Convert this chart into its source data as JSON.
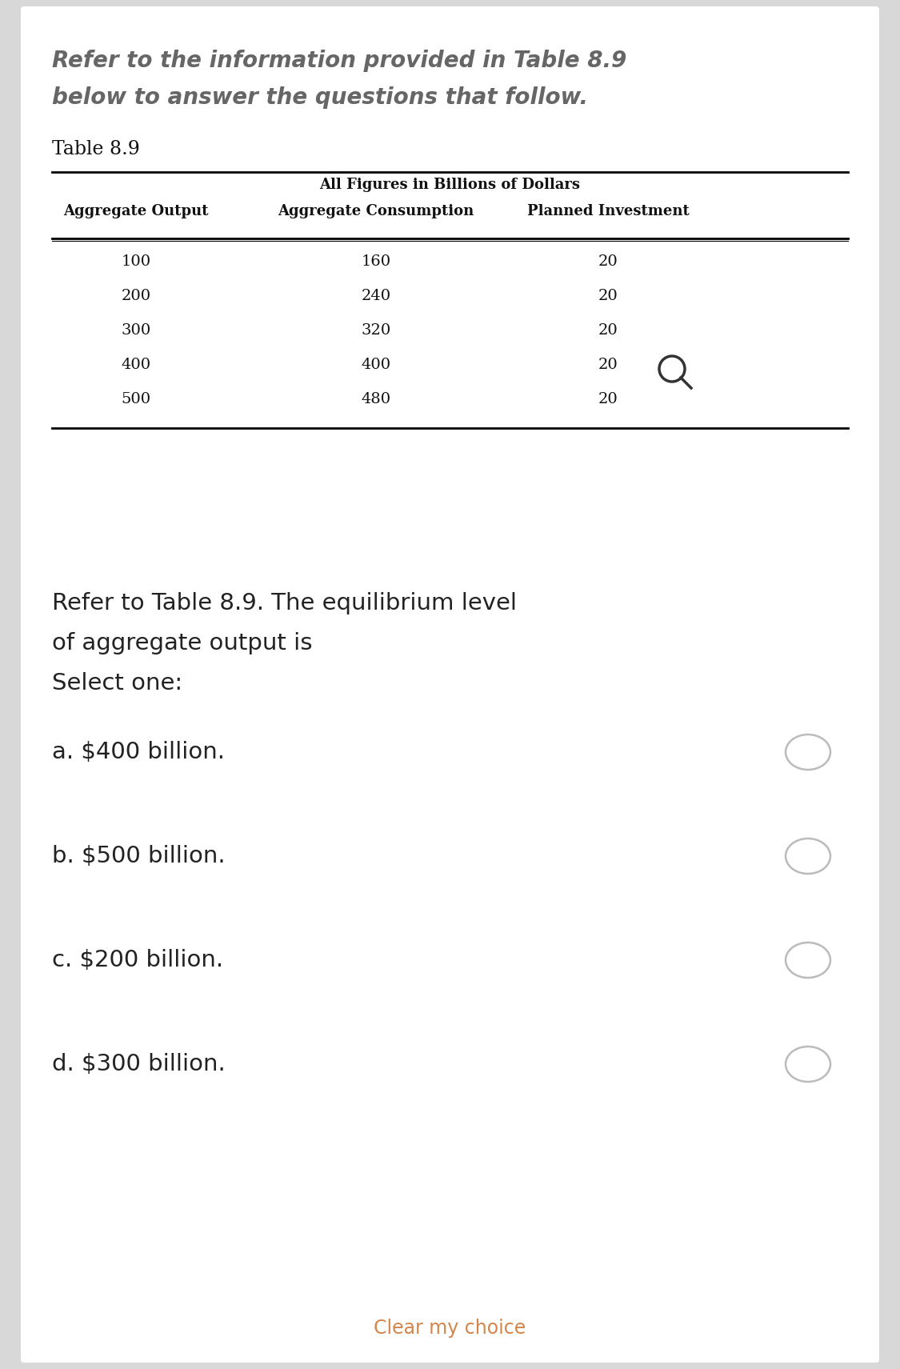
{
  "intro_text_line1": "Refer to the information provided in Table 8.9",
  "intro_text_line2": "below to answer the questions that follow.",
  "table_title": "Table 8.9",
  "table_subtitle": "All Figures in Billions of Dollars",
  "col_headers": [
    "Aggregate Output",
    "Aggregate Consumption",
    "Planned Investment"
  ],
  "table_data": [
    [
      100,
      160,
      20
    ],
    [
      200,
      240,
      20
    ],
    [
      300,
      320,
      20
    ],
    [
      400,
      400,
      20
    ],
    [
      500,
      480,
      20
    ]
  ],
  "question_line1": "Refer to Table 8.9. The equilibrium level",
  "question_line2": "of aggregate output is",
  "question_line3": "Select one:",
  "choices": [
    "a. $400 billion.",
    "b. $500 billion.",
    "c. $200 billion.",
    "d. $300 billion."
  ],
  "clear_text": "Clear my choice",
  "clear_color": "#d4854a",
  "bg_color": "#ffffff",
  "outer_bg": "#d8d8d8",
  "text_color": "#222222",
  "radio_color": "#bbbbbb",
  "intro_color": "#666666",
  "table_text_color": "#111111"
}
